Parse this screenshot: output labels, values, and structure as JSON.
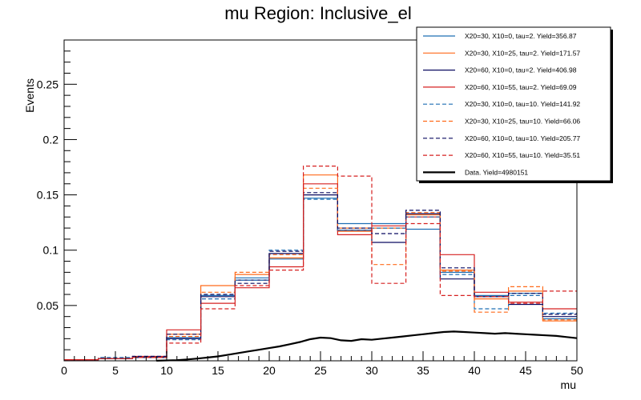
{
  "chart_data": {
    "type": "line",
    "title": "mu Region: Inclusive_el",
    "xlabel": "mu",
    "ylabel": "Events",
    "xlim": [
      0,
      50
    ],
    "ylim": [
      0,
      0.29
    ],
    "xticks": [
      0,
      5,
      10,
      15,
      20,
      25,
      30,
      35,
      40,
      45,
      50
    ],
    "yticks": [
      0.05,
      0.1,
      0.15,
      0.2,
      0.25
    ],
    "bin_edges": [
      0,
      3.33,
      6.67,
      10,
      13.33,
      16.67,
      20,
      23.33,
      26.67,
      30,
      33.33,
      36.67,
      40,
      43.33,
      46.67,
      50
    ],
    "legend_position": "top-right",
    "series": [
      {
        "name": "X20=30, X10=0, tau=2. Yield=356.87",
        "color": "#1f6fb4",
        "style": "solid",
        "values": [
          0.001,
          0.002,
          0.003,
          0.021,
          0.059,
          0.075,
          0.092,
          0.147,
          0.124,
          0.124,
          0.119,
          0.08,
          0.059,
          0.061,
          0.038
        ]
      },
      {
        "name": "X20=30, X10=25, tau=2. Yield=171.57",
        "color": "#ff6a1a",
        "style": "solid",
        "values": [
          0.001,
          0.002,
          0.003,
          0.024,
          0.068,
          0.078,
          0.093,
          0.168,
          0.117,
          0.12,
          0.132,
          0.082,
          0.056,
          0.063,
          0.036
        ]
      },
      {
        "name": "X20=60, X10=0, tau=2. Yield=406.98",
        "color": "#0a0a60",
        "style": "solid",
        "values": [
          0.001,
          0.002,
          0.003,
          0.02,
          0.058,
          0.073,
          0.097,
          0.15,
          0.118,
          0.107,
          0.133,
          0.074,
          0.058,
          0.051,
          0.04
        ]
      },
      {
        "name": "X20=60, X10=55, tau=2. Yield=69.09",
        "color": "#d62020",
        "style": "solid",
        "values": [
          0.001,
          0.002,
          0.004,
          0.028,
          0.052,
          0.066,
          0.085,
          0.16,
          0.114,
          0.122,
          0.13,
          0.096,
          0.062,
          0.053,
          0.047
        ]
      },
      {
        "name": "X20=30, X10=0, tau=10. Yield=141.92",
        "color": "#1f6fb4",
        "style": "dashed",
        "values": [
          0.001,
          0.003,
          0.004,
          0.019,
          0.056,
          0.073,
          0.1,
          0.146,
          0.118,
          0.12,
          0.13,
          0.078,
          0.047,
          0.059,
          0.043
        ]
      },
      {
        "name": "X20=30, X10=25, tau=10. Yield=66.06",
        "color": "#ff6a1a",
        "style": "dashed",
        "values": [
          0.001,
          0.002,
          0.003,
          0.022,
          0.062,
          0.08,
          0.096,
          0.156,
          0.12,
          0.087,
          0.134,
          0.081,
          0.044,
          0.067,
          0.037
        ]
      },
      {
        "name": "X20=60, X10=0, tau=10. Yield=205.77",
        "color": "#0a0a60",
        "style": "dashed",
        "values": [
          0.001,
          0.002,
          0.004,
          0.024,
          0.06,
          0.07,
          0.099,
          0.152,
          0.12,
          0.115,
          0.136,
          0.084,
          0.058,
          0.061,
          0.042
        ]
      },
      {
        "name": "X20=60, X10=55, tau=10. Yield=35.51",
        "color": "#d62020",
        "style": "dashed",
        "values": [
          0.001,
          0.002,
          0.003,
          0.016,
          0.047,
          0.068,
          0.082,
          0.176,
          0.167,
          0.07,
          0.124,
          0.059,
          0.058,
          0.052,
          0.063
        ]
      }
    ],
    "data_series": {
      "name": "Data. Yield=4980151",
      "color": "#000000",
      "x": [
        9,
        11,
        12,
        13,
        14,
        15,
        16,
        17,
        18,
        19,
        20,
        21,
        22,
        23,
        24,
        25,
        26,
        27,
        28,
        29,
        30,
        31,
        32,
        33,
        34,
        35,
        36,
        37,
        38,
        39,
        40,
        41,
        42,
        43,
        44,
        45,
        46,
        47,
        48,
        49,
        50
      ],
      "y": [
        0.0001,
        0.0006,
        0.0012,
        0.002,
        0.003,
        0.004,
        0.0055,
        0.007,
        0.0085,
        0.01,
        0.0115,
        0.013,
        0.015,
        0.017,
        0.0195,
        0.021,
        0.0205,
        0.0185,
        0.018,
        0.0195,
        0.019,
        0.02,
        0.021,
        0.022,
        0.023,
        0.024,
        0.025,
        0.026,
        0.0265,
        0.026,
        0.0255,
        0.025,
        0.0245,
        0.025,
        0.0245,
        0.024,
        0.0235,
        0.023,
        0.0225,
        0.0215,
        0.0205
      ]
    }
  }
}
